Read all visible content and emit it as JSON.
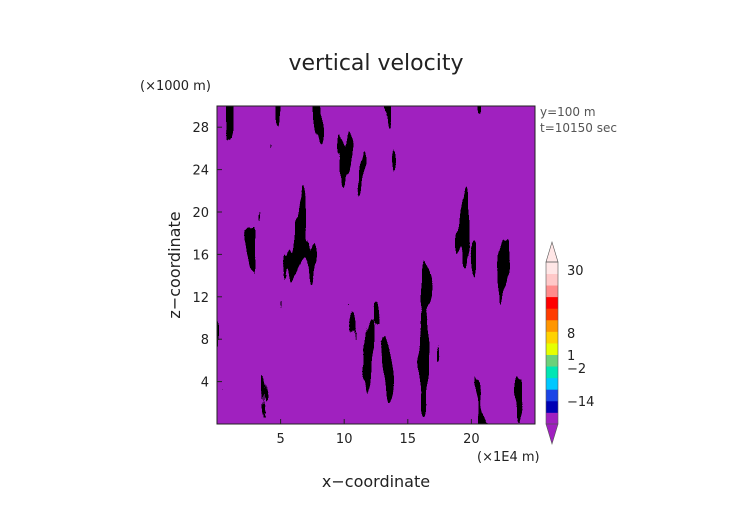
{
  "chart_data": {
    "type": "heatmap",
    "title": "vertical velocity",
    "xlabel": "x−coordinate",
    "ylabel": "z−coordinate",
    "x_unit": "(×1E4 m)",
    "y_unit": "(×1000 m)",
    "annotations": [
      "y=100  m",
      "t=10150 sec"
    ],
    "xlim": [
      0,
      25
    ],
    "ylim": [
      0,
      30
    ],
    "x_ticks": [
      5,
      10,
      15,
      20
    ],
    "y_ticks": [
      4,
      8,
      12,
      16,
      20,
      24,
      28
    ],
    "colorbar": {
      "tick_labels": [
        "30",
        "8",
        "1",
        "−2",
        "−14"
      ],
      "tick_values": [
        30,
        8,
        1,
        -2,
        -14
      ],
      "colors": [
        "#a020c0",
        "#0000b4",
        "#1b44e6",
        "#00c8ff",
        "#00e6b4",
        "#6bd17a",
        "#e6ff00",
        "#ffd200",
        "#ff9600",
        "#ff3c00",
        "#ff0000",
        "#ff8c8c",
        "#ffc8c8",
        "#ffe6e6"
      ]
    }
  }
}
